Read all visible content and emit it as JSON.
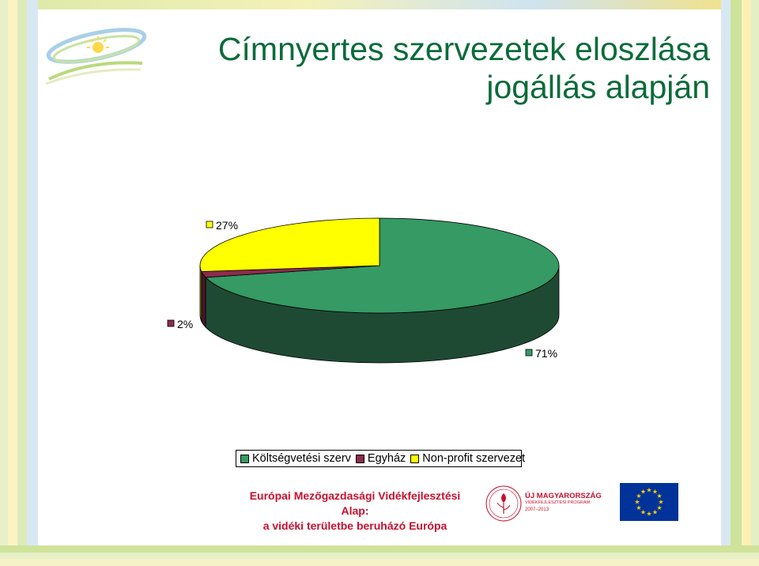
{
  "title": {
    "line1": "Címnyertes szervezetek eloszlása",
    "line2": "jogállás alapján"
  },
  "chart_data": {
    "type": "pie",
    "style": "3d",
    "categories": [
      "Költségvetési szerv",
      "Egyház",
      "Non-profit szervezet"
    ],
    "values": [
      71,
      2,
      27
    ],
    "labels": [
      "71%",
      "2%",
      "27%"
    ],
    "colors": [
      "#359a63",
      "#8c2c4f",
      "#ffff00"
    ],
    "side_colors": [
      "#1e4a33",
      "#4a1428",
      "#8a8a00"
    ],
    "legend_position": "bottom"
  },
  "footer": {
    "line1": "Európai Mezőgazdasági Vidékfejlesztési Alap:",
    "line2": "a vidéki területbe beruházó Európa"
  },
  "umvp_logo": {
    "title": "ÚJ MAGYARORSZÁG",
    "subtitle": "VIDÉKFEJLESZTÉSI PROGRAM",
    "years": "2007–2013"
  },
  "colors": {
    "title": "#0b6b3a",
    "footer": "#c8102e",
    "eu_blue": "#003399",
    "eu_star": "#ffcc00"
  }
}
